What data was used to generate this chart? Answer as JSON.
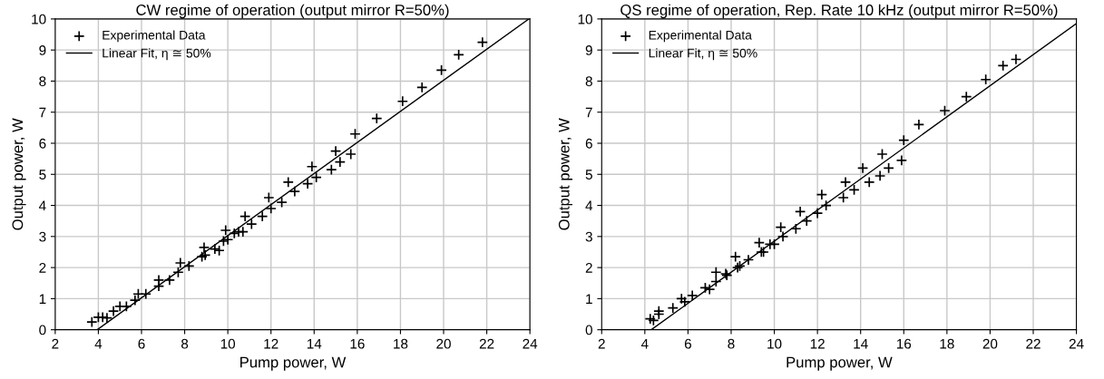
{
  "chart_data": [
    {
      "type": "scatter",
      "title": "CW regime of operation (output mirror R=50%)",
      "xlabel": "Pump power, W",
      "ylabel": "Output power, W",
      "xlim": [
        2,
        24
      ],
      "xticks": [
        2,
        4,
        6,
        8,
        10,
        12,
        14,
        16,
        18,
        20,
        22,
        24
      ],
      "ylim": [
        0,
        10
      ],
      "yticks": [
        0,
        1,
        2,
        3,
        4,
        5,
        6,
        7,
        8,
        9,
        10
      ],
      "grid": true,
      "legend": "top left",
      "series": [
        {
          "name": "Experimental Data",
          "marker": "cross",
          "color": "#000000",
          "x": [
            3.7,
            4.0,
            4.2,
            4.4,
            4.7,
            5.0,
            5.3,
            5.7,
            5.85,
            6.2,
            6.8,
            6.8,
            7.3,
            7.7,
            7.8,
            8.2,
            8.8,
            8.9,
            8.95,
            9.4,
            9.6,
            9.8,
            9.9,
            10.0,
            10.3,
            10.5,
            10.7,
            10.8,
            11.1,
            11.6,
            11.9,
            12.0,
            12.5,
            12.8,
            13.1,
            13.7,
            13.9,
            14.1,
            14.8,
            15.0,
            15.2,
            15.7,
            15.9,
            16.9,
            18.1,
            19.0,
            19.9,
            20.7,
            21.8
          ],
          "values": [
            0.25,
            0.4,
            0.4,
            0.38,
            0.6,
            0.75,
            0.75,
            0.95,
            1.15,
            1.15,
            1.4,
            1.6,
            1.6,
            1.85,
            2.15,
            2.05,
            2.35,
            2.65,
            2.4,
            2.6,
            2.55,
            2.85,
            3.2,
            2.9,
            3.1,
            3.15,
            3.15,
            3.65,
            3.4,
            3.65,
            4.25,
            3.9,
            4.1,
            4.75,
            4.45,
            4.7,
            5.25,
            4.9,
            5.15,
            5.75,
            5.4,
            5.65,
            6.3,
            6.8,
            7.35,
            7.8,
            8.35,
            8.85,
            9.25
          ]
        },
        {
          "name": "Linear Fit, η ≅ 50%",
          "type": "line",
          "marker": "none",
          "line_style": "solid",
          "color": "#000000",
          "x": [
            3.95,
            23.95
          ],
          "values": [
            0,
            10
          ]
        }
      ]
    },
    {
      "type": "scatter",
      "title": "QS regime of operation, Rep. Rate 10 kHz (output mirror R=50%)",
      "xlabel": "Pump power, W",
      "ylabel": "Output power, W",
      "xlim": [
        2,
        24
      ],
      "xticks": [
        2,
        4,
        6,
        8,
        10,
        12,
        14,
        16,
        18,
        20,
        22,
        24
      ],
      "ylim": [
        0,
        10
      ],
      "yticks": [
        0,
        1,
        2,
        3,
        4,
        5,
        6,
        7,
        8,
        9,
        10
      ],
      "grid": true,
      "legend": "top left",
      "series": [
        {
          "name": "Experimental Data",
          "marker": "cross",
          "color": "#000000",
          "x": [
            4.25,
            4.4,
            4.65,
            4.65,
            5.3,
            5.7,
            5.85,
            6.2,
            6.8,
            7.0,
            7.3,
            7.3,
            7.75,
            7.8,
            8.2,
            8.3,
            8.4,
            8.8,
            9.3,
            9.4,
            9.5,
            9.8,
            10.0,
            10.3,
            10.4,
            11.0,
            11.2,
            11.5,
            12.0,
            12.2,
            12.4,
            13.2,
            13.3,
            13.7,
            14.1,
            14.4,
            14.9,
            15.0,
            15.3,
            15.9,
            16.0,
            16.7,
            17.9,
            18.9,
            19.8,
            20.6,
            21.2
          ],
          "values": [
            0.35,
            0.3,
            0.6,
            0.5,
            0.7,
            1.0,
            0.9,
            1.1,
            1.35,
            1.3,
            1.85,
            1.55,
            1.8,
            1.75,
            2.35,
            2.0,
            2.05,
            2.25,
            2.8,
            2.5,
            2.5,
            2.75,
            2.75,
            3.3,
            3.0,
            3.25,
            3.8,
            3.5,
            3.75,
            4.35,
            4.0,
            4.25,
            4.75,
            4.5,
            5.2,
            4.75,
            4.95,
            5.65,
            5.2,
            5.45,
            6.1,
            6.6,
            7.05,
            7.5,
            8.05,
            8.5,
            8.7
          ]
        },
        {
          "name": "Linear Fit, η ≅ 50%",
          "type": "line",
          "marker": "none",
          "line_style": "solid",
          "color": "#000000",
          "x": [
            4.3,
            24.0
          ],
          "values": [
            0,
            9.85
          ]
        }
      ]
    }
  ]
}
